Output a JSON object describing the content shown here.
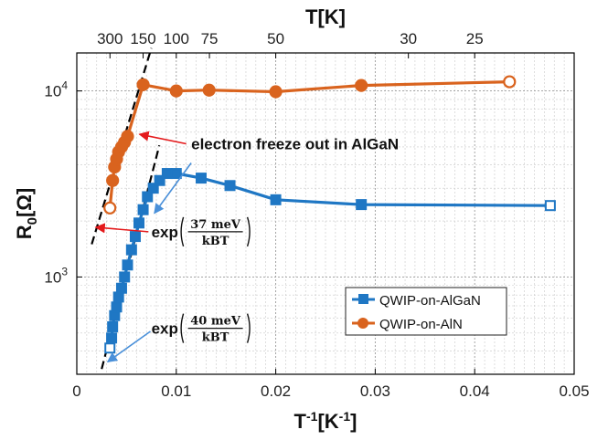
{
  "chart_data": {
    "type": "scatter",
    "xlabel": "T-1[K-1]",
    "ylabel": "R0[Ω]",
    "top_axis_label": "T[K]",
    "xlim": [
      0,
      0.05
    ],
    "ylim": [
      300,
      16000
    ],
    "yscale": "log",
    "grid": true,
    "legend_position": "lower-right",
    "x_ticks": [
      "0",
      "0.01",
      "0.02",
      "0.03",
      "0.04",
      "0.05"
    ],
    "y_ticks": [
      {
        "base": "10",
        "exp": "3",
        "value": 1000
      },
      {
        "base": "10",
        "exp": "4",
        "value": 10000
      }
    ],
    "top_ticks": [
      {
        "label": "300",
        "T": 300
      },
      {
        "label": "150",
        "T": 150
      },
      {
        "label": "100",
        "T": 100
      },
      {
        "label": "75",
        "T": 75
      },
      {
        "label": "50",
        "T": 50
      },
      {
        "label": "30",
        "T": 30
      },
      {
        "label": "25",
        "T": 25
      }
    ],
    "series": [
      {
        "name": "QWIP-on-AlGaN",
        "color": "#1F77C4",
        "marker": "square",
        "points": [
          [
            0.00333,
            415
          ],
          [
            0.0035,
            470
          ],
          [
            0.0036,
            540
          ],
          [
            0.0038,
            620
          ],
          [
            0.004,
            690
          ],
          [
            0.0042,
            780
          ],
          [
            0.0045,
            870
          ],
          [
            0.0048,
            1000
          ],
          [
            0.0051,
            1160
          ],
          [
            0.0055,
            1400
          ],
          [
            0.00588,
            1650
          ],
          [
            0.00625,
            1950
          ],
          [
            0.00667,
            2300
          ],
          [
            0.0071,
            2700
          ],
          [
            0.00769,
            3000
          ],
          [
            0.00833,
            3300
          ],
          [
            0.00909,
            3600
          ],
          [
            0.01,
            3600
          ],
          [
            0.0125,
            3400
          ],
          [
            0.0154,
            3100
          ],
          [
            0.02,
            2600
          ],
          [
            0.0286,
            2450
          ],
          [
            0.0476,
            2420
          ]
        ]
      },
      {
        "name": "QWIP-on-AlN",
        "color": "#D9631E",
        "marker": "circle",
        "points": [
          [
            0.00333,
            2350
          ],
          [
            0.0036,
            3300
          ],
          [
            0.0038,
            3900
          ],
          [
            0.004,
            4300
          ],
          [
            0.0042,
            4700
          ],
          [
            0.0045,
            5000
          ],
          [
            0.0048,
            5300
          ],
          [
            0.0051,
            5700
          ],
          [
            0.00667,
            10800
          ],
          [
            0.01,
            10000
          ],
          [
            0.0133,
            10100
          ],
          [
            0.02,
            9900
          ],
          [
            0.0286,
            10700
          ],
          [
            0.0435,
            11200
          ]
        ]
      }
    ],
    "fit_lines": [
      {
        "points": [
          [
            0.0015,
            1500
          ],
          [
            0.0075,
            17000
          ]
        ],
        "color": "#000000",
        "style": "dashed"
      },
      {
        "points": [
          [
            0.0025,
            320
          ],
          [
            0.0083,
            5100
          ]
        ],
        "color": "#000000",
        "style": "dashed"
      }
    ],
    "annotations": [
      {
        "text": "electron freeze out in AlGaN",
        "text_at": [
          0.0115,
          4850
        ],
        "arrows": [
          {
            "from": [
              0.011,
              5200
            ],
            "to": [
              0.0063,
              5850
            ],
            "color": "#E41A1C"
          },
          {
            "from": [
              0.0115,
              4100
            ],
            "to": [
              0.0078,
              2200
            ],
            "color": "#4A90D9"
          }
        ]
      },
      {
        "text_prefix": "exp",
        "numerator": "37 meV",
        "denominator": "kBT",
        "text_at": [
          0.0075,
          1750
        ],
        "arrows": [
          {
            "from": [
              0.0072,
              1750
            ],
            "to": [
              0.0019,
              1850
            ],
            "color": "#E41A1C"
          }
        ]
      },
      {
        "text_prefix": "exp",
        "numerator": "40 meV",
        "denominator": "kBT",
        "text_at": [
          0.0075,
          530
        ],
        "arrows": [
          {
            "from": [
              0.0074,
              510
            ],
            "to": [
              0.0031,
              350
            ],
            "color": "#4A90D9"
          }
        ]
      }
    ]
  }
}
